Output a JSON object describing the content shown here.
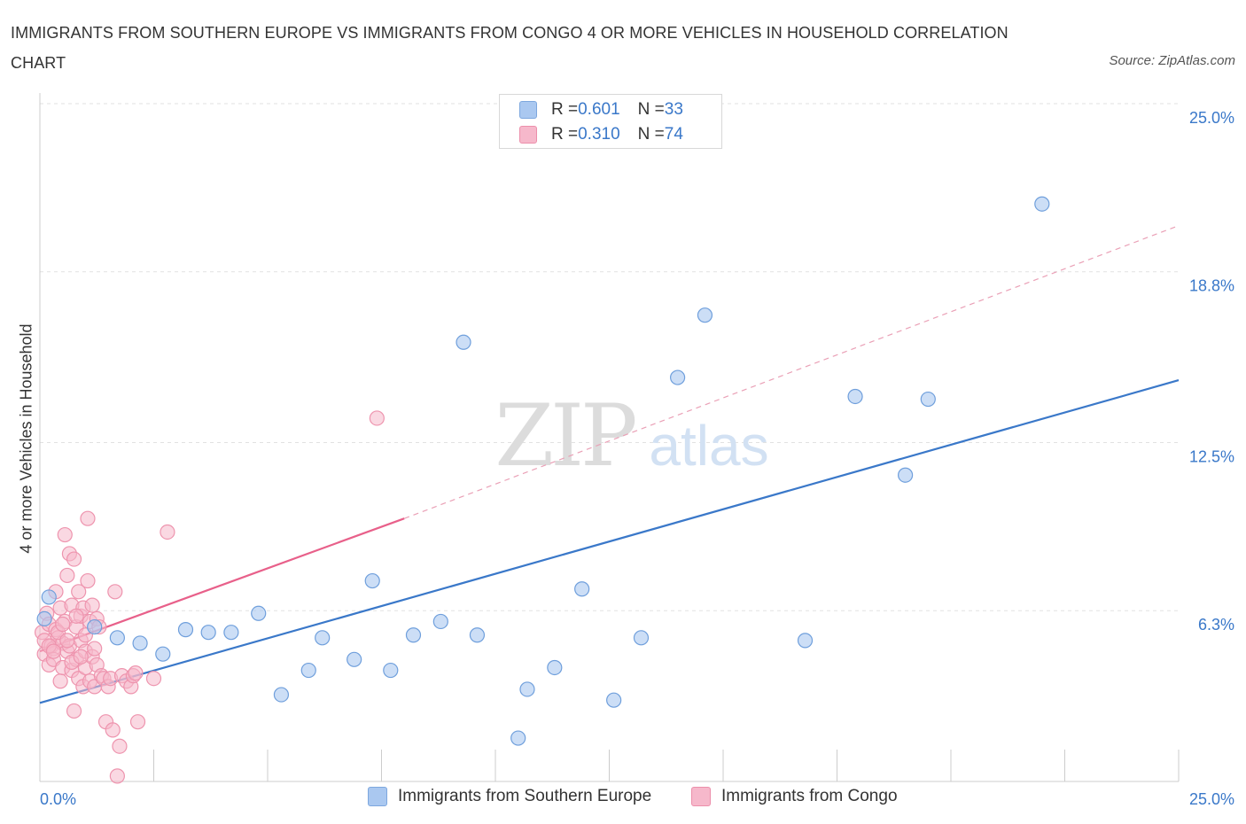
{
  "title": "IMMIGRANTS FROM SOUTHERN EUROPE VS IMMIGRANTS FROM CONGO 4 OR MORE VEHICLES IN HOUSEHOLD CORRELATION CHART",
  "source": "Source: ZipAtlas.com",
  "watermark": {
    "zip": "ZIP",
    "atlas": "atlas"
  },
  "legend": {
    "rows": [
      {
        "r_label": "R = ",
        "r_value": "0.601",
        "n_label": "N = ",
        "n_value": "33",
        "color": "#aac8f0"
      },
      {
        "r_label": "R = ",
        "r_value": "0.310",
        "n_label": "N = ",
        "n_value": "74",
        "color": "#f6b8cb"
      }
    ]
  },
  "bottom_legend": [
    {
      "label": "Immigrants from Southern Europe",
      "color": "#aac8f0"
    },
    {
      "label": "Immigrants from Congo",
      "color": "#f6b8cb"
    }
  ],
  "chart_data": {
    "type": "scatter",
    "title": "IMMIGRANTS FROM SOUTHERN EUROPE VS IMMIGRANTS FROM CONGO 4 OR MORE VEHICLES IN HOUSEHOLD CORRELATION CHART",
    "xlabel": "",
    "ylabel": "4 or more Vehicles in Household",
    "xlim": [
      0,
      25
    ],
    "ylim": [
      0,
      25
    ],
    "x_tick_labels": [
      {
        "value": 0,
        "label": "0.0%"
      },
      {
        "value": 25,
        "label": "25.0%"
      }
    ],
    "y_tick_labels": [
      {
        "value": 6.3,
        "label": "6.3%"
      },
      {
        "value": 12.5,
        "label": "12.5%"
      },
      {
        "value": 18.8,
        "label": "18.8%"
      },
      {
        "value": 25.0,
        "label": "25.0%"
      }
    ],
    "grid": true,
    "legend_position": "top-center",
    "series": [
      {
        "name": "Immigrants from Southern Europe",
        "color": "#3a78c9",
        "fill": "#aac8f0",
        "points": [
          [
            0.2,
            6.8
          ],
          [
            1.2,
            5.7
          ],
          [
            1.7,
            5.3
          ],
          [
            2.2,
            5.1
          ],
          [
            2.7,
            4.7
          ],
          [
            3.2,
            5.6
          ],
          [
            3.7,
            5.5
          ],
          [
            4.2,
            5.5
          ],
          [
            4.8,
            6.2
          ],
          [
            5.3,
            3.2
          ],
          [
            5.9,
            4.1
          ],
          [
            6.2,
            5.3
          ],
          [
            6.9,
            4.5
          ],
          [
            7.3,
            7.4
          ],
          [
            7.7,
            4.1
          ],
          [
            8.2,
            5.4
          ],
          [
            8.8,
            5.9
          ],
          [
            9.3,
            16.2
          ],
          [
            9.6,
            5.4
          ],
          [
            10.5,
            1.6
          ],
          [
            10.7,
            3.4
          ],
          [
            11.3,
            4.2
          ],
          [
            11.9,
            7.1
          ],
          [
            12.6,
            3.0
          ],
          [
            13.2,
            5.3
          ],
          [
            14.0,
            14.9
          ],
          [
            14.6,
            17.2
          ],
          [
            16.8,
            5.2
          ],
          [
            17.9,
            14.2
          ],
          [
            19.0,
            11.3
          ],
          [
            19.5,
            14.1
          ],
          [
            22.0,
            21.3
          ],
          [
            0.1,
            6.0
          ]
        ],
        "trend": {
          "x": [
            0,
            25
          ],
          "y": [
            2.9,
            14.8
          ]
        }
      },
      {
        "name": "Immigrants from Congo",
        "color": "#e8608a",
        "fill": "#f6b8cb",
        "points": [
          [
            0.05,
            5.5
          ],
          [
            0.1,
            5.2
          ],
          [
            0.1,
            4.7
          ],
          [
            0.15,
            6.2
          ],
          [
            0.2,
            5.8
          ],
          [
            0.2,
            4.3
          ],
          [
            0.25,
            5.0
          ],
          [
            0.3,
            4.9
          ],
          [
            0.3,
            4.5
          ],
          [
            0.35,
            7.0
          ],
          [
            0.35,
            5.6
          ],
          [
            0.4,
            5.3
          ],
          [
            0.45,
            6.4
          ],
          [
            0.45,
            3.7
          ],
          [
            0.5,
            5.1
          ],
          [
            0.5,
            4.2
          ],
          [
            0.55,
            9.1
          ],
          [
            0.55,
            5.9
          ],
          [
            0.6,
            7.6
          ],
          [
            0.6,
            4.8
          ],
          [
            0.65,
            8.4
          ],
          [
            0.65,
            5.0
          ],
          [
            0.7,
            6.5
          ],
          [
            0.7,
            4.1
          ],
          [
            0.75,
            8.2
          ],
          [
            0.75,
            2.6
          ],
          [
            0.8,
            5.7
          ],
          [
            0.8,
            4.5
          ],
          [
            0.85,
            7.0
          ],
          [
            0.85,
            3.8
          ],
          [
            0.9,
            6.1
          ],
          [
            0.9,
            5.2
          ],
          [
            0.95,
            6.4
          ],
          [
            0.95,
            3.5
          ],
          [
            1.0,
            4.8
          ],
          [
            1.0,
            4.2
          ],
          [
            1.05,
            9.7
          ],
          [
            1.05,
            7.4
          ],
          [
            1.1,
            5.9
          ],
          [
            1.1,
            3.7
          ],
          [
            1.15,
            6.5
          ],
          [
            1.15,
            4.6
          ],
          [
            1.2,
            4.9
          ],
          [
            1.2,
            3.5
          ],
          [
            1.25,
            6.0
          ],
          [
            1.25,
            4.3
          ],
          [
            1.3,
            5.7
          ],
          [
            1.35,
            3.9
          ],
          [
            1.4,
            3.8
          ],
          [
            1.45,
            2.2
          ],
          [
            1.5,
            3.5
          ],
          [
            1.55,
            3.8
          ],
          [
            1.6,
            1.9
          ],
          [
            1.65,
            7.0
          ],
          [
            1.7,
            0.2
          ],
          [
            1.75,
            1.3
          ],
          [
            1.8,
            3.9
          ],
          [
            1.9,
            3.7
          ],
          [
            2.0,
            3.5
          ],
          [
            2.05,
            3.9
          ],
          [
            2.1,
            4.0
          ],
          [
            2.15,
            2.2
          ],
          [
            2.5,
            3.8
          ],
          [
            2.8,
            9.2
          ],
          [
            7.4,
            13.4
          ],
          [
            0.2,
            5.0
          ],
          [
            0.3,
            4.8
          ],
          [
            0.4,
            5.5
          ],
          [
            0.5,
            5.8
          ],
          [
            0.6,
            5.2
          ],
          [
            0.7,
            4.4
          ],
          [
            0.8,
            6.1
          ],
          [
            0.9,
            4.6
          ],
          [
            1.0,
            5.4
          ]
        ],
        "trend_solid": {
          "x": [
            0,
            8.0
          ],
          "y": [
            4.8,
            9.7
          ]
        },
        "trend_dashed": {
          "x": [
            8.0,
            25
          ],
          "y": [
            9.7,
            20.5
          ]
        }
      }
    ]
  }
}
